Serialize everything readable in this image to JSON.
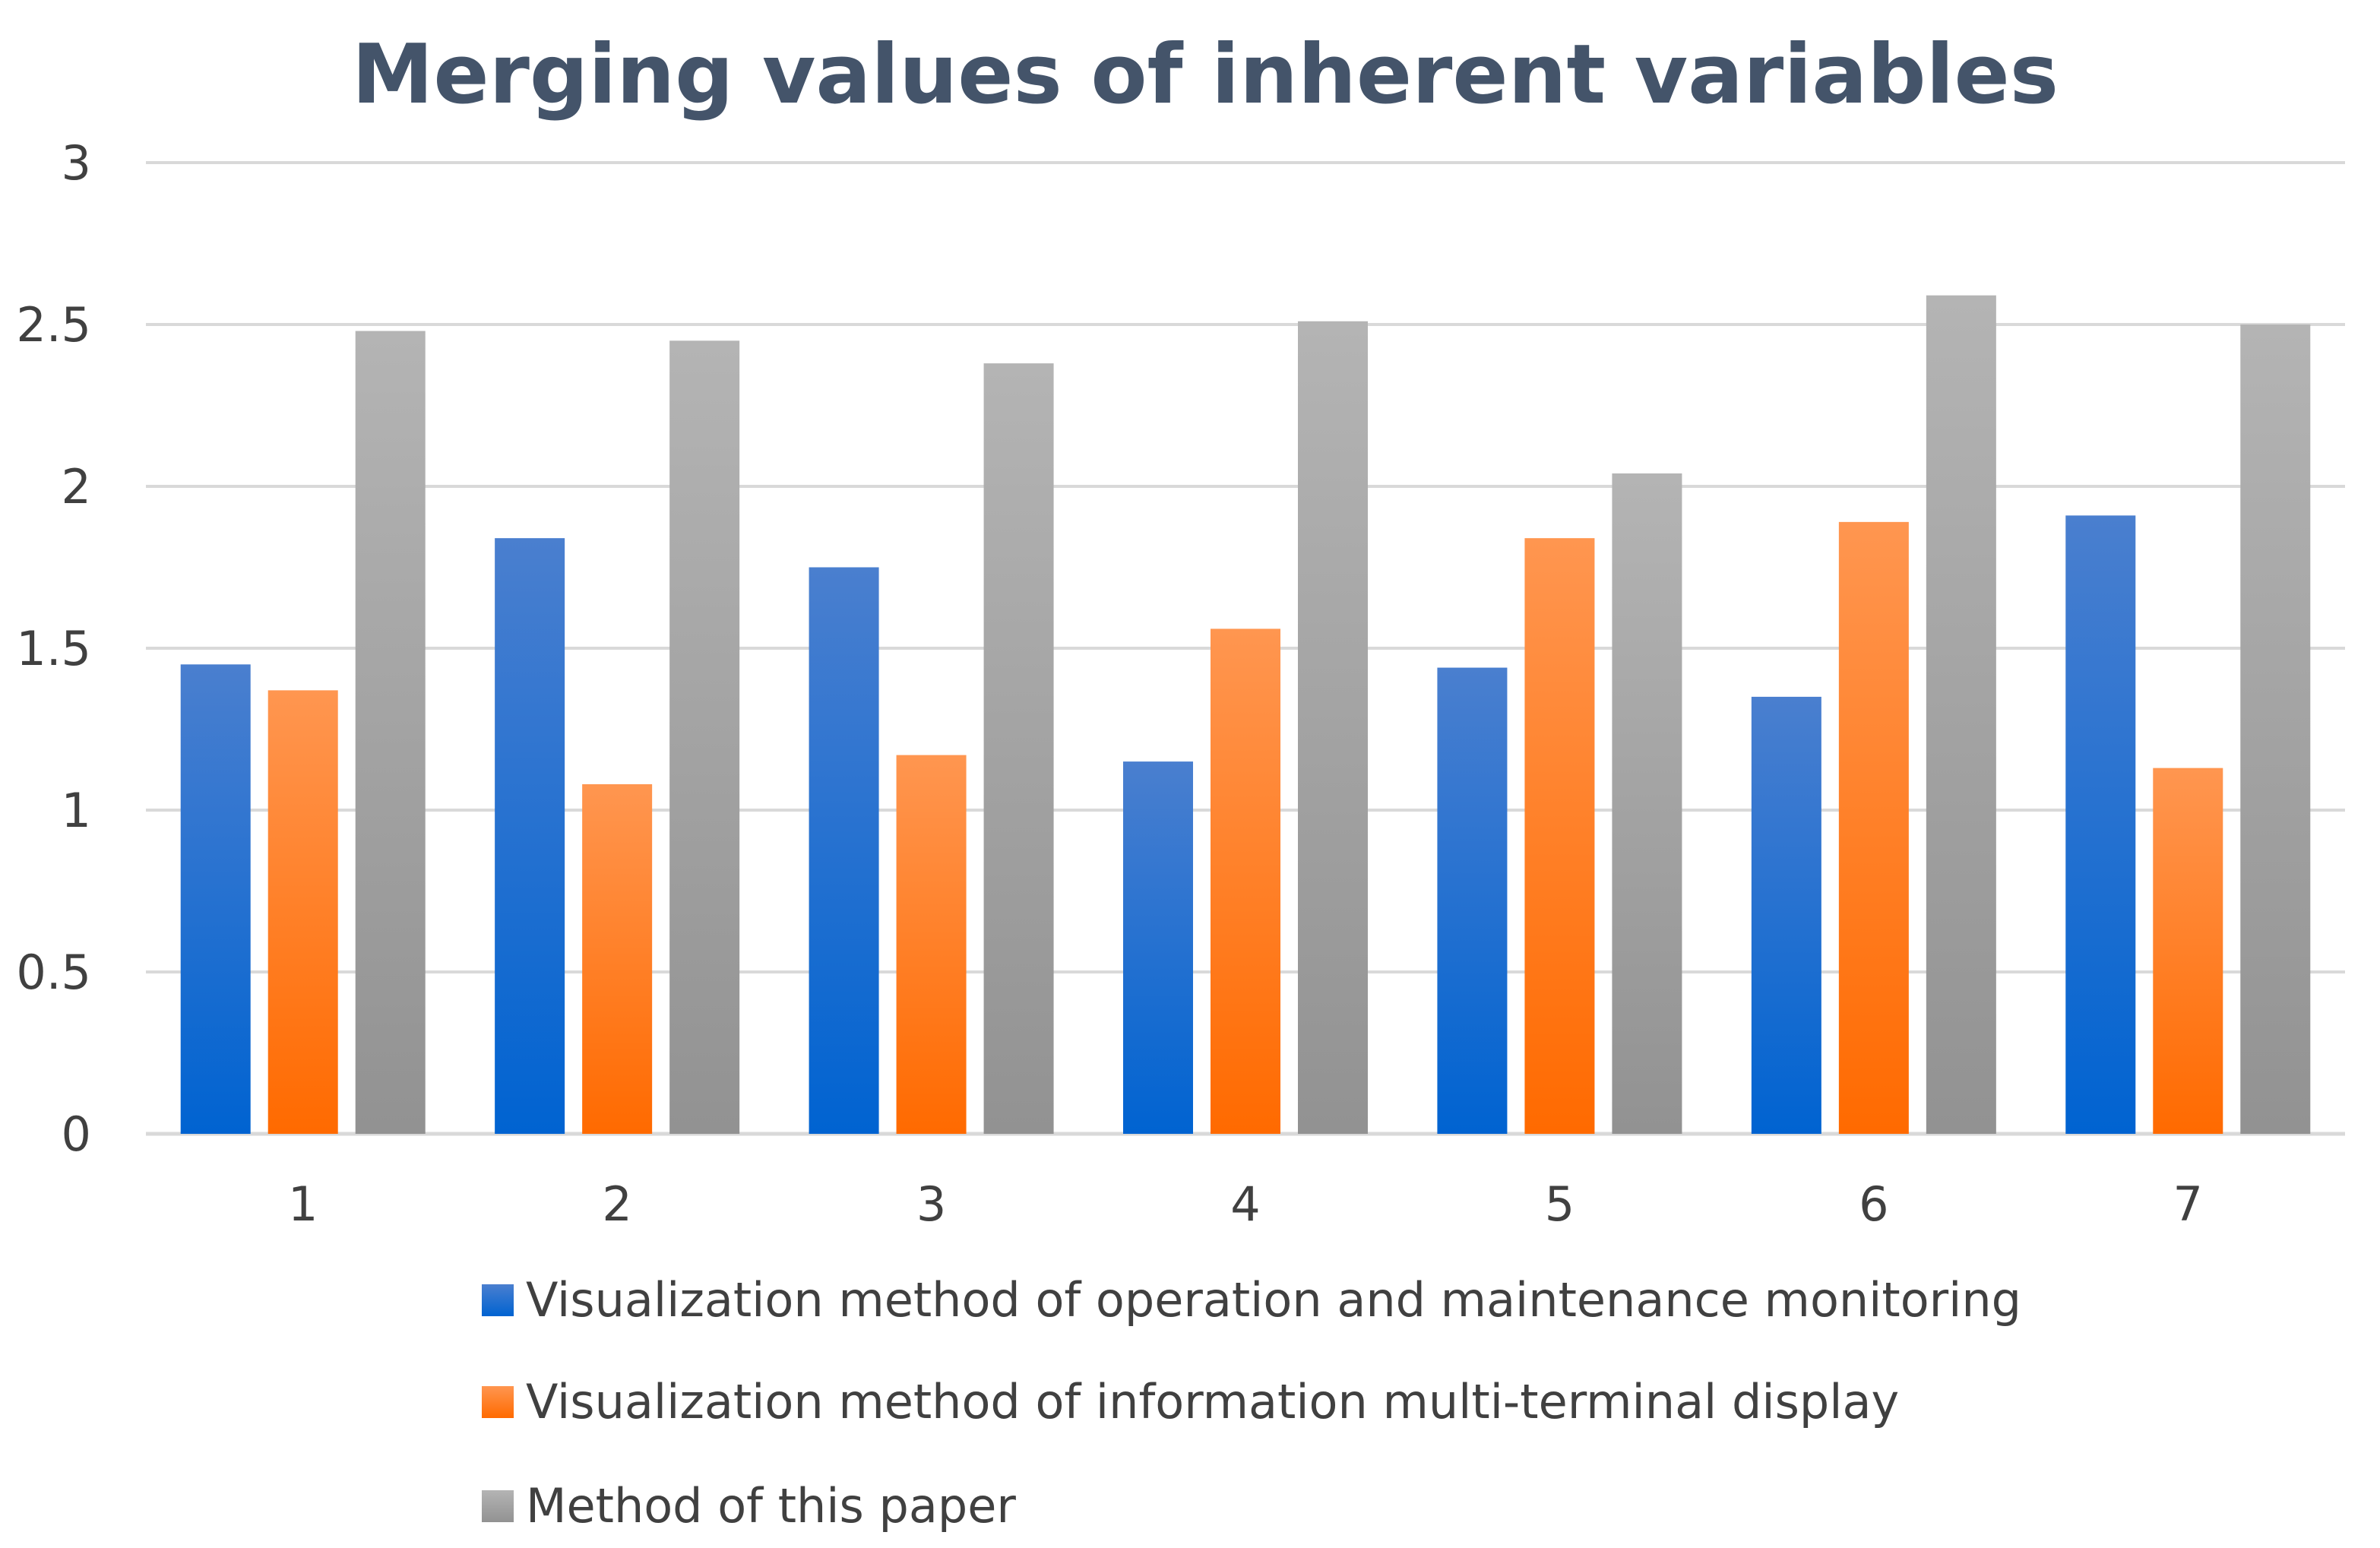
{
  "chart_data": {
    "type": "bar",
    "title": "Merging values of inherent variables",
    "xlabel": "",
    "ylabel": "",
    "categories": [
      "1",
      "2",
      "3",
      "4",
      "5",
      "6",
      "7"
    ],
    "ylim": [
      0,
      3
    ],
    "yticks": [
      0,
      0.5,
      1,
      1.5,
      2,
      2.5,
      3
    ],
    "ytick_labels": [
      "0",
      "0.5",
      "1",
      "1.5",
      "2",
      "2.5",
      "3"
    ],
    "grid": true,
    "legend_position": "bottom",
    "series": [
      {
        "name": "Visualization method of operation and maintenance monitoring",
        "values": [
          1.45,
          1.84,
          1.75,
          1.15,
          1.44,
          1.35,
          1.91
        ],
        "color_top": "#4a7fcf",
        "color_bottom": "#0063d1"
      },
      {
        "name": "Visualization method of information multi-terminal display",
        "values": [
          1.37,
          1.08,
          1.17,
          1.56,
          1.84,
          1.89,
          1.13
        ],
        "color_top": "#ff9650",
        "color_bottom": "#ff6a00"
      },
      {
        "name": "Method of this paper",
        "values": [
          2.48,
          2.45,
          2.38,
          2.51,
          2.04,
          2.59,
          2.5
        ],
        "color_top": "#b4b4b4",
        "color_bottom": "#929292"
      }
    ],
    "colors": {
      "title": "#44546a",
      "gridline": "#d9d9d9",
      "axis": "#d9d9d9",
      "tick_text": "#404040"
    }
  }
}
